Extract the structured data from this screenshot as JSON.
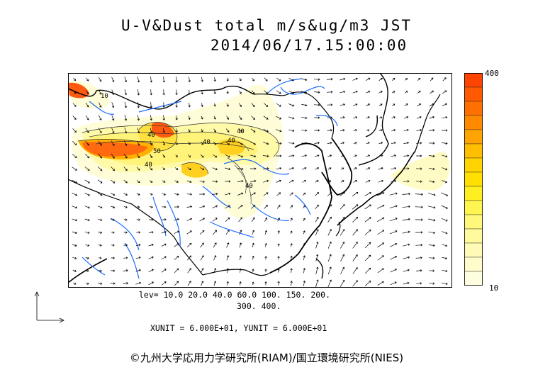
{
  "title": {
    "line1": "U-V&Dust total m/s&ug/m3 JST",
    "line2": "2014/06/17.15:00:00"
  },
  "legend": {
    "max_label": "400",
    "min_label": "10",
    "colors": [
      "#ff4400",
      "#ff5a00",
      "#ff7000",
      "#ff8a00",
      "#ffa400",
      "#ffbe00",
      "#ffd400",
      "#ffe000",
      "#ffee20",
      "#fff550",
      "#fff87a",
      "#fffa9c",
      "#fffbb6",
      "#fffccc",
      "#fffde0"
    ]
  },
  "levels": {
    "line1": "lev= 10.0 20.0 40.0 60.0 100. 150. 200.",
    "line2": "300. 400."
  },
  "units": {
    "text": "XUNIT = 6.000E+01, YUNIT = 6.000E+01"
  },
  "copyright": "©九州大学応用力学研究所(RIAM)/国立環境研究所(NIES)",
  "contour_labels": [
    "40",
    "40",
    "40",
    "40",
    "40",
    "40",
    "50",
    "10"
  ]
}
